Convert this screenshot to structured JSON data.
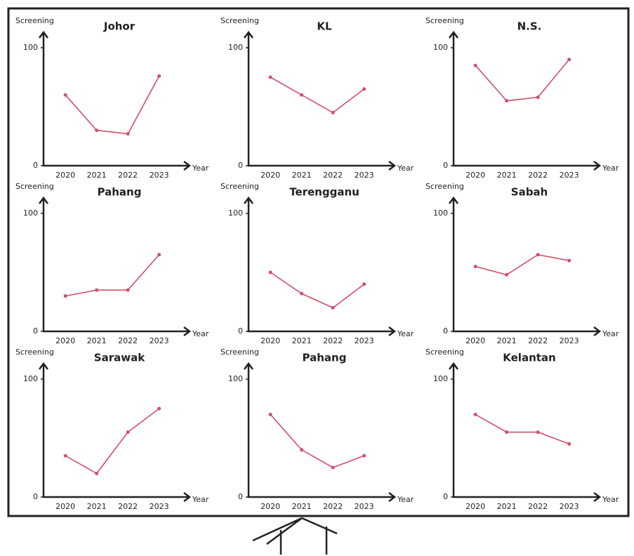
{
  "chart_data": [
    {
      "type": "line",
      "title": "Johor",
      "y_label": "Screening",
      "x_label": "Year",
      "categories": [
        "2020",
        "2021",
        "2022",
        "2023"
      ],
      "values": [
        60,
        30,
        27,
        76
      ],
      "color": "#d0506a",
      "ylim": [
        0,
        100
      ],
      "yticks": [
        0,
        100
      ]
    },
    {
      "type": "line",
      "title": "KL",
      "y_label": "Screening",
      "x_label": "Year",
      "categories": [
        "2020",
        "2021",
        "2022",
        "2023"
      ],
      "values": [
        75,
        60,
        45,
        65
      ],
      "color": "#d0506a",
      "ylim": [
        0,
        100
      ],
      "yticks": [
        0,
        100
      ]
    },
    {
      "type": "line",
      "title": "N.S.",
      "y_label": "Screening",
      "x_label": "Year",
      "categories": [
        "2020",
        "2021",
        "2022",
        "2023"
      ],
      "values": [
        85,
        55,
        58,
        90
      ],
      "color": "#d0506a",
      "ylim": [
        0,
        100
      ],
      "yticks": [
        0,
        100
      ]
    },
    {
      "type": "line",
      "title": "Pahang",
      "y_label": "Screening",
      "x_label": "Year",
      "categories": [
        "2020",
        "2021",
        "2022",
        "2023"
      ],
      "values": [
        30,
        35,
        35,
        65
      ],
      "color": "#d0506a",
      "ylim": [
        0,
        100
      ],
      "yticks": [
        0,
        100
      ]
    },
    {
      "type": "line",
      "title": "Terengganu",
      "y_label": "Screening",
      "x_label": "Year",
      "categories": [
        "2020",
        "2021",
        "2022",
        "2023"
      ],
      "values": [
        50,
        32,
        20,
        40
      ],
      "color": "#d0506a",
      "ylim": [
        0,
        100
      ],
      "yticks": [
        0,
        100
      ]
    },
    {
      "type": "line",
      "title": "Sabah",
      "y_label": "Screening",
      "x_label": "Year",
      "categories": [
        "2020",
        "2021",
        "2022",
        "2023"
      ],
      "values": [
        55,
        48,
        65,
        60
      ],
      "color": "#d0506a",
      "ylim": [
        0,
        100
      ],
      "yticks": [
        0,
        100
      ]
    },
    {
      "type": "line",
      "title": "Sarawak",
      "y_label": "Screening",
      "x_label": "Year",
      "categories": [
        "2020",
        "2021",
        "2022",
        "2023"
      ],
      "values": [
        35,
        20,
        55,
        75
      ],
      "color": "#d0506a",
      "ylim": [
        0,
        100
      ],
      "yticks": [
        0,
        100
      ]
    },
    {
      "type": "line",
      "title": "Pahang",
      "y_label": "Screening",
      "x_label": "Year",
      "categories": [
        "2020",
        "2021",
        "2022",
        "2023"
      ],
      "values": [
        70,
        40,
        25,
        35
      ],
      "color": "#d0506a",
      "ylim": [
        0,
        100
      ],
      "yticks": [
        0,
        100
      ]
    },
    {
      "type": "line",
      "title": "Kelantan",
      "y_label": "Screening",
      "x_label": "Year",
      "categories": [
        "2020",
        "2021",
        "2022",
        "2023"
      ],
      "values": [
        70,
        55,
        55,
        45
      ],
      "color": "#d0506a",
      "ylim": [
        0,
        100
      ],
      "yticks": [
        0,
        100
      ]
    }
  ]
}
